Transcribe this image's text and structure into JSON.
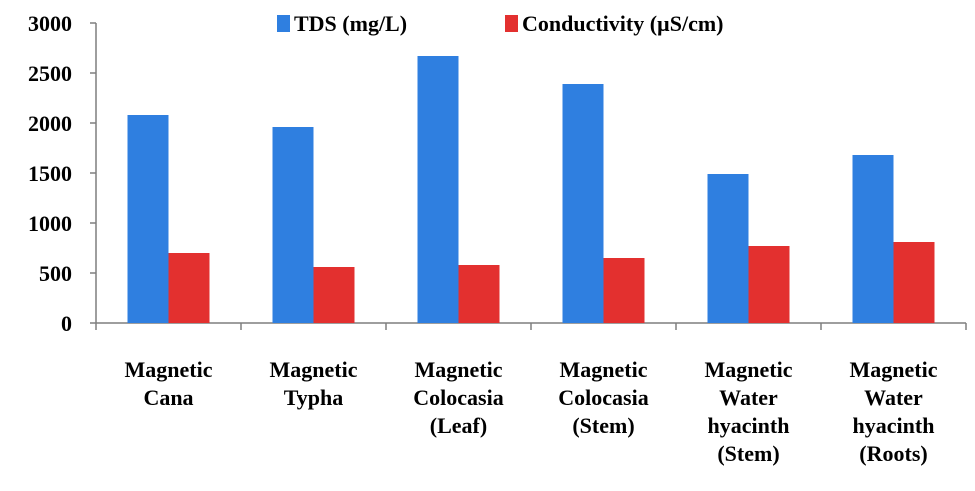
{
  "chart_data": {
    "type": "bar",
    "categories": [
      [
        "Magnetic",
        "Cana"
      ],
      [
        "Magnetic",
        "Typha"
      ],
      [
        "Magnetic",
        "Colocasia",
        "(Leaf)"
      ],
      [
        "Magnetic",
        "Colocasia",
        "(Stem)"
      ],
      [
        "Magnetic",
        "Water",
        "hyacinth",
        "(Stem)"
      ],
      [
        "Magnetic",
        "Water",
        "hyacinth",
        "(Roots)"
      ]
    ],
    "series": [
      {
        "name": "TDS (mg/L)",
        "color": "#2f7fe0",
        "values": [
          2080,
          1960,
          2670,
          2390,
          1490,
          1680
        ]
      },
      {
        "name": "Conductivity (µS/cm)",
        "color": "#e3302f",
        "values": [
          700,
          560,
          580,
          650,
          770,
          810
        ]
      }
    ],
    "ylim": [
      0,
      3000
    ],
    "yticks": [
      "0",
      "500",
      "1000",
      "1500",
      "2000",
      "2500",
      "3000"
    ],
    "legend_position": "top",
    "grid": false
  }
}
